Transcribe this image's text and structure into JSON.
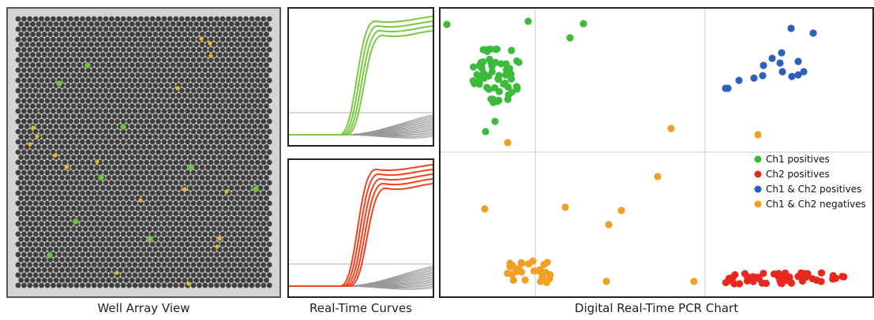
{
  "captions": {
    "well_array": "Well Array View",
    "curves": "Real-Time Curves",
    "pcr": "Digital  Real-Time PCR Chart"
  },
  "colors": {
    "well": "#3e3e3e",
    "well_border": "#6a6a6a",
    "well_bg": "#d4d4d4",
    "ch1": "#3cba3c",
    "ch2": "#e8281e",
    "both": "#2e5fbf",
    "neg": "#f2a024",
    "ch1_curve": "#7ac943",
    "ch2_curve": "#ee4422",
    "baseline": "#999999"
  },
  "legend": [
    {
      "label": "Ch1 positives",
      "color": "#3cba3c"
    },
    {
      "label": "Ch2 positives",
      "color": "#e8281e"
    },
    {
      "label": "Ch1 & Ch2 positives",
      "color": "#2e5fbf"
    },
    {
      "label": "Ch1 & Ch2 negatives",
      "color": "#f2a024"
    }
  ]
}
